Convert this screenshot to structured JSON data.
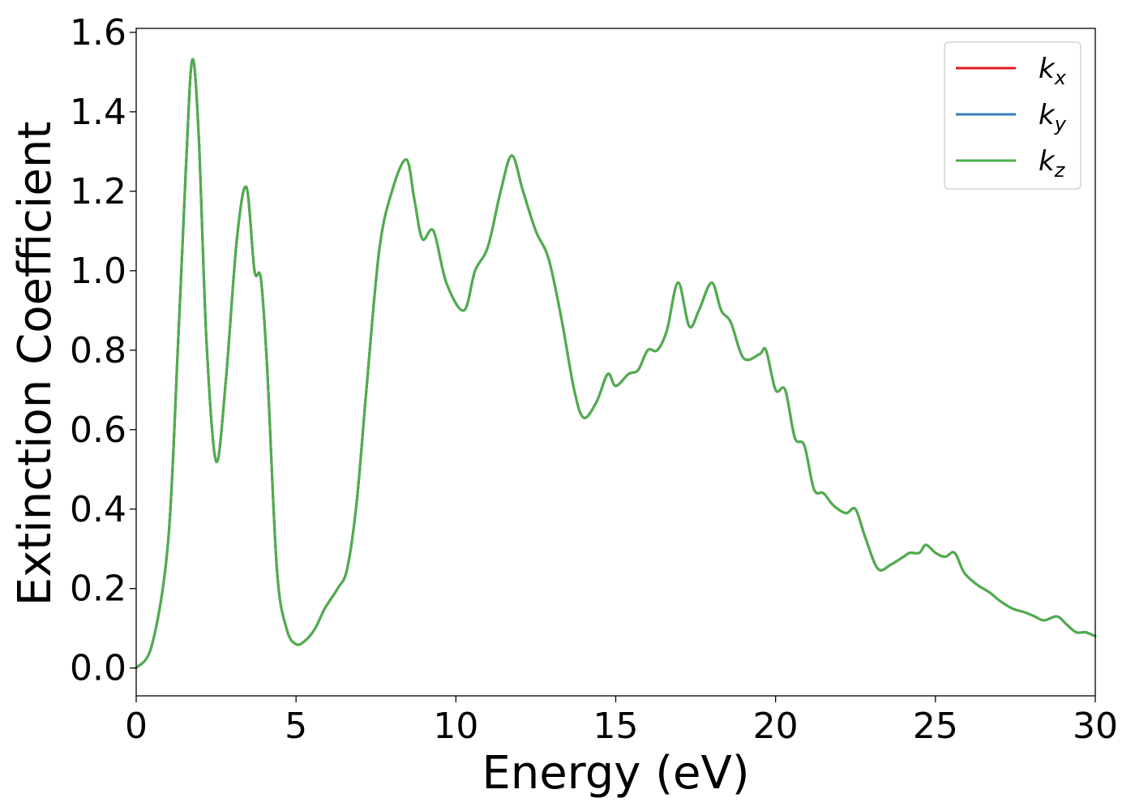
{
  "chart_data": {
    "type": "line",
    "xlabel": "Energy (eV)",
    "ylabel": "Extinction Coefficient",
    "xlim": [
      0,
      30
    ],
    "ylim": [
      -0.07,
      1.61
    ],
    "xticks": [
      0,
      5,
      10,
      15,
      20,
      25,
      30
    ],
    "xtick_labels": [
      "0",
      "5",
      "10",
      "15",
      "20",
      "25",
      "30"
    ],
    "yticks": [
      0.0,
      0.2,
      0.4,
      0.6,
      0.8,
      1.0,
      1.2,
      1.4,
      1.6
    ],
    "ytick_labels": [
      "0.0",
      "0.2",
      "0.4",
      "0.6",
      "0.8",
      "1.0",
      "1.2",
      "1.4",
      "1.6"
    ],
    "grid": false,
    "legend_position": "top-right",
    "x": [
      0,
      0.5,
      1.0,
      1.3,
      1.55,
      1.75,
      1.95,
      2.2,
      2.5,
      2.8,
      3.15,
      3.45,
      3.7,
      3.9,
      4.1,
      4.4,
      4.7,
      5.0,
      5.3,
      5.6,
      5.9,
      6.3,
      6.6,
      6.9,
      7.2,
      7.6,
      8.0,
      8.45,
      8.7,
      8.95,
      9.3,
      9.7,
      10.25,
      10.6,
      11.0,
      11.4,
      11.75,
      12.1,
      12.5,
      12.9,
      13.3,
      13.7,
      14.0,
      14.4,
      14.75,
      15.0,
      15.4,
      15.7,
      16.0,
      16.3,
      16.6,
      16.95,
      17.3,
      17.6,
      18.0,
      18.3,
      18.6,
      19.0,
      19.5,
      19.7,
      20.0,
      20.3,
      20.6,
      20.9,
      21.2,
      21.5,
      21.8,
      22.2,
      22.5,
      22.8,
      23.2,
      23.6,
      24.0,
      24.2,
      24.5,
      24.7,
      25.0,
      25.3,
      25.6,
      25.9,
      26.3,
      26.7,
      27.0,
      27.4,
      27.8,
      28.1,
      28.4,
      28.8,
      29.1,
      29.4,
      29.7,
      30.0
    ],
    "series": [
      {
        "name": "k",
        "subscript": "x",
        "color": "#e41a1c",
        "values": [
          0.0,
          0.06,
          0.32,
          0.8,
          1.25,
          1.53,
          1.35,
          0.82,
          0.52,
          0.72,
          1.08,
          1.21,
          1.0,
          0.98,
          0.75,
          0.25,
          0.1,
          0.06,
          0.07,
          0.1,
          0.15,
          0.2,
          0.25,
          0.42,
          0.7,
          1.05,
          1.2,
          1.28,
          1.18,
          1.08,
          1.1,
          0.97,
          0.9,
          1.0,
          1.06,
          1.2,
          1.29,
          1.2,
          1.1,
          1.03,
          0.88,
          0.7,
          0.63,
          0.67,
          0.74,
          0.71,
          0.74,
          0.75,
          0.8,
          0.8,
          0.85,
          0.97,
          0.86,
          0.9,
          0.97,
          0.9,
          0.87,
          0.78,
          0.79,
          0.8,
          0.7,
          0.7,
          0.58,
          0.56,
          0.45,
          0.44,
          0.41,
          0.39,
          0.4,
          0.33,
          0.25,
          0.26,
          0.28,
          0.29,
          0.29,
          0.31,
          0.29,
          0.28,
          0.29,
          0.24,
          0.21,
          0.19,
          0.17,
          0.15,
          0.14,
          0.13,
          0.12,
          0.13,
          0.11,
          0.09,
          0.09,
          0.08
        ]
      },
      {
        "name": "k",
        "subscript": "y",
        "color": "#377eb8",
        "values": [
          0.0,
          0.06,
          0.32,
          0.8,
          1.25,
          1.53,
          1.35,
          0.82,
          0.52,
          0.72,
          1.08,
          1.21,
          1.0,
          0.98,
          0.75,
          0.25,
          0.1,
          0.06,
          0.07,
          0.1,
          0.15,
          0.2,
          0.25,
          0.42,
          0.7,
          1.05,
          1.2,
          1.28,
          1.18,
          1.08,
          1.1,
          0.97,
          0.9,
          1.0,
          1.06,
          1.2,
          1.29,
          1.2,
          1.1,
          1.03,
          0.88,
          0.7,
          0.63,
          0.67,
          0.74,
          0.71,
          0.74,
          0.75,
          0.8,
          0.8,
          0.85,
          0.97,
          0.86,
          0.9,
          0.97,
          0.9,
          0.87,
          0.78,
          0.79,
          0.8,
          0.7,
          0.7,
          0.58,
          0.56,
          0.45,
          0.44,
          0.41,
          0.39,
          0.4,
          0.33,
          0.25,
          0.26,
          0.28,
          0.29,
          0.29,
          0.31,
          0.29,
          0.28,
          0.29,
          0.24,
          0.21,
          0.19,
          0.17,
          0.15,
          0.14,
          0.13,
          0.12,
          0.13,
          0.11,
          0.09,
          0.09,
          0.08
        ]
      },
      {
        "name": "k",
        "subscript": "z",
        "color": "#4daf4a",
        "values": [
          0.0,
          0.06,
          0.32,
          0.8,
          1.25,
          1.53,
          1.35,
          0.82,
          0.52,
          0.72,
          1.08,
          1.21,
          1.0,
          0.98,
          0.75,
          0.25,
          0.1,
          0.06,
          0.07,
          0.1,
          0.15,
          0.2,
          0.25,
          0.42,
          0.7,
          1.05,
          1.2,
          1.28,
          1.18,
          1.08,
          1.1,
          0.97,
          0.9,
          1.0,
          1.06,
          1.2,
          1.29,
          1.2,
          1.1,
          1.03,
          0.88,
          0.7,
          0.63,
          0.67,
          0.74,
          0.71,
          0.74,
          0.75,
          0.8,
          0.8,
          0.85,
          0.97,
          0.86,
          0.9,
          0.97,
          0.9,
          0.87,
          0.78,
          0.79,
          0.8,
          0.7,
          0.7,
          0.58,
          0.56,
          0.45,
          0.44,
          0.41,
          0.39,
          0.4,
          0.33,
          0.25,
          0.26,
          0.28,
          0.29,
          0.29,
          0.31,
          0.29,
          0.28,
          0.29,
          0.24,
          0.21,
          0.19,
          0.17,
          0.15,
          0.14,
          0.13,
          0.12,
          0.13,
          0.11,
          0.09,
          0.09,
          0.08
        ]
      }
    ]
  }
}
